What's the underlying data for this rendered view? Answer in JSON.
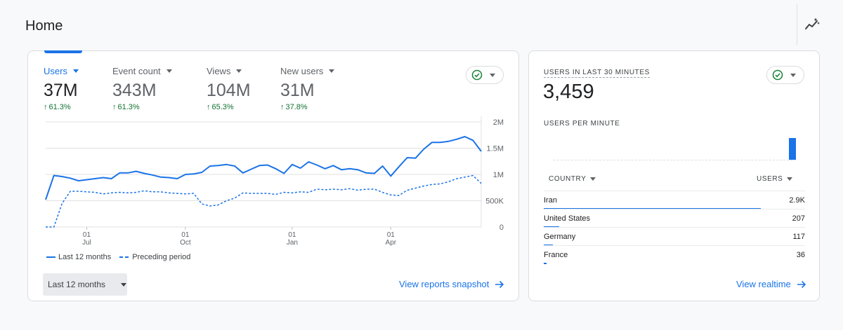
{
  "page": {
    "title": "Home"
  },
  "main_card": {
    "metrics": [
      {
        "label": "Users",
        "value": "37M",
        "change": "61.3%",
        "active": true
      },
      {
        "label": "Event count",
        "value": "343M",
        "change": "61.3%",
        "active": false
      },
      {
        "label": "Views",
        "value": "104M",
        "change": "65.3%",
        "active": false
      },
      {
        "label": "New users",
        "value": "31M",
        "change": "37.8%",
        "active": false
      }
    ],
    "legend": {
      "current": "Last 12 months",
      "previous": "Preceding period"
    },
    "range_button": "Last 12 months",
    "link": "View reports snapshot"
  },
  "chart_data": {
    "type": "line",
    "y_ticks": [
      "2M",
      "1.5M",
      "1M",
      "500K",
      "0"
    ],
    "ylim": [
      0,
      2000000
    ],
    "x_ticks": [
      {
        "day": "01",
        "month": "Jul"
      },
      {
        "day": "01",
        "month": "Oct"
      },
      {
        "day": "01",
        "month": "Jan"
      },
      {
        "day": "01",
        "month": "Apr"
      }
    ],
    "series": [
      {
        "name": "Last 12 months",
        "style": "solid",
        "color": "#1a73e8",
        "values": [
          520000,
          980000,
          960000,
          930000,
          880000,
          900000,
          920000,
          940000,
          920000,
          1030000,
          1030000,
          1060000,
          1020000,
          990000,
          950000,
          940000,
          920000,
          1000000,
          1010000,
          1040000,
          1160000,
          1170000,
          1190000,
          1160000,
          1030000,
          1100000,
          1170000,
          1180000,
          1110000,
          1020000,
          1190000,
          1120000,
          1240000,
          1180000,
          1110000,
          1170000,
          1090000,
          1110000,
          1090000,
          1030000,
          1020000,
          1160000,
          970000,
          1150000,
          1320000,
          1310000,
          1480000,
          1610000,
          1610000,
          1630000,
          1670000,
          1720000,
          1650000,
          1440000
        ]
      },
      {
        "name": "Preceding period",
        "style": "dashed",
        "color": "#1a73e8",
        "values": [
          0,
          0,
          450000,
          680000,
          680000,
          670000,
          660000,
          630000,
          650000,
          660000,
          650000,
          660000,
          690000,
          670000,
          670000,
          650000,
          640000,
          630000,
          640000,
          440000,
          400000,
          420000,
          500000,
          550000,
          650000,
          640000,
          640000,
          640000,
          620000,
          660000,
          650000,
          670000,
          660000,
          720000,
          710000,
          720000,
          710000,
          730000,
          700000,
          720000,
          720000,
          660000,
          610000,
          600000,
          700000,
          740000,
          780000,
          810000,
          820000,
          860000,
          920000,
          950000,
          980000,
          830000
        ]
      }
    ]
  },
  "realtime_card": {
    "title": "USERS IN LAST 30 MINUTES",
    "value": "3,459",
    "sub_title": "USERS PER MINUTE",
    "col_country": "COUNTRY",
    "col_users": "USERS",
    "rows": [
      {
        "country": "Iran",
        "users": "2.9K",
        "share": 0.83
      },
      {
        "country": "United States",
        "users": "207",
        "share": 0.06
      },
      {
        "country": "Germany",
        "users": "117",
        "share": 0.034
      },
      {
        "country": "France",
        "users": "36",
        "share": 0.01
      }
    ],
    "link": "View realtime"
  },
  "colors": {
    "accent": "#1a73e8",
    "positive": "#137333",
    "status_ok": "#188038"
  }
}
